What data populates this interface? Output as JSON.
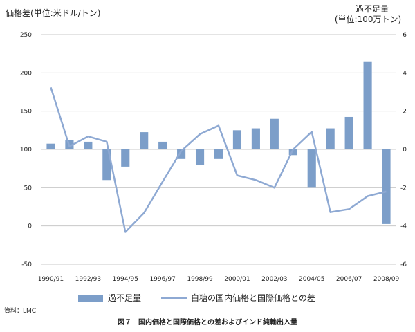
{
  "chart_data": {
    "type": "bar+line",
    "left_axis_title": "価格差(単位:米ドル/トン)",
    "right_axis_title_line1": "過不足量",
    "right_axis_title_line2": "(単位:100万トン)",
    "left_ylim": [
      -50,
      250
    ],
    "left_ticks": [
      250,
      200,
      150,
      100,
      50,
      0,
      -50
    ],
    "right_ylim": [
      -6,
      6
    ],
    "right_ticks": [
      6,
      4,
      2,
      0,
      -2,
      -4,
      -6
    ],
    "grid": true,
    "x_labels_shown": [
      "1990/91",
      "1992/93",
      "1994/95",
      "1996/97",
      "1998/99",
      "2000/01",
      "2002/03",
      "2004/05",
      "2006/07",
      "2008/09"
    ],
    "categories": [
      "1990/91",
      "1991/92",
      "1992/93",
      "1993/94",
      "1994/95",
      "1995/96",
      "1996/97",
      "1997/98",
      "1998/99",
      "1999/00",
      "2000/01",
      "2001/02",
      "2002/03",
      "2003/04",
      "2004/05",
      "2005/06",
      "2006/07",
      "2007/08",
      "2008/09"
    ],
    "series": [
      {
        "name": "過不足量",
        "type": "bar",
        "axis": "right",
        "color": "#7c9ec9",
        "values": [
          0.3,
          0.5,
          0.4,
          -1.6,
          -0.9,
          0.9,
          0.4,
          -0.5,
          -0.8,
          -0.5,
          1.0,
          1.1,
          1.6,
          -0.3,
          -2.0,
          1.1,
          1.7,
          4.6,
          -3.9
        ]
      },
      {
        "name": "白糖の国内価格と国際価格との差",
        "type": "line",
        "axis": "left",
        "color": "#8ea9d3",
        "values": [
          181,
          104,
          117,
          110,
          -8,
          17,
          58,
          98,
          120,
          131,
          66,
          60,
          50,
          100,
          123,
          18,
          22,
          39,
          45
        ]
      }
    ],
    "legend": {
      "placement": "bottom",
      "items": [
        "過不足量",
        "白糖の国内価格と国際価格との差"
      ]
    },
    "source_note": "資料：LMC",
    "caption": "図７　国内価格と国際価格との差およびインド純輸出入量"
  }
}
